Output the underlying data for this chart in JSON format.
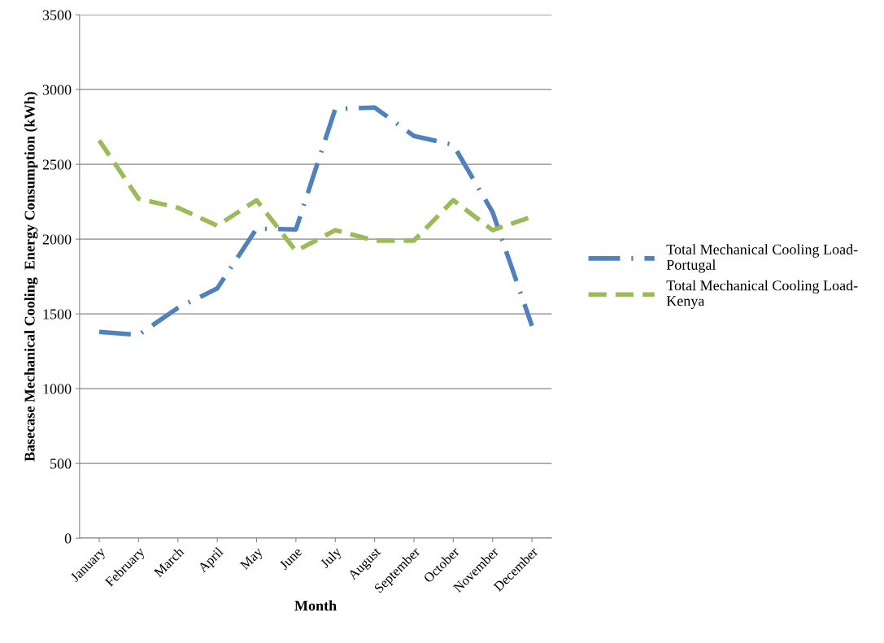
{
  "chart_data": {
    "type": "line",
    "xlabel": "Month",
    "ylabel": "Basecase Mechanical Cooling  Energy Consumption (kWh)",
    "categories": [
      "January",
      "February",
      "March",
      "April",
      "May",
      "June",
      "July",
      "August",
      "September",
      "October",
      "November",
      "December"
    ],
    "series": [
      {
        "name": "Total Mechanical Cooling Load-Portugal",
        "color": "#4f81bd",
        "line_style": "dashdot",
        "values": [
          1380,
          1360,
          1540,
          1670,
          2070,
          2065,
          2870,
          2880,
          2690,
          2630,
          2180,
          1420
        ]
      },
      {
        "name": "Total Mechanical Cooling Load-Kenya",
        "color": "#9bbb59",
        "line_style": "dashed",
        "values": [
          2660,
          2270,
          2210,
          2090,
          2260,
          1920,
          2060,
          1990,
          1990,
          2260,
          2060,
          2150
        ]
      }
    ],
    "ylim": [
      0,
      3500
    ],
    "yticks": [
      0,
      500,
      1000,
      1500,
      2000,
      2500,
      3000,
      3500
    ],
    "grid": "y",
    "legend": "right",
    "marker": "none"
  }
}
